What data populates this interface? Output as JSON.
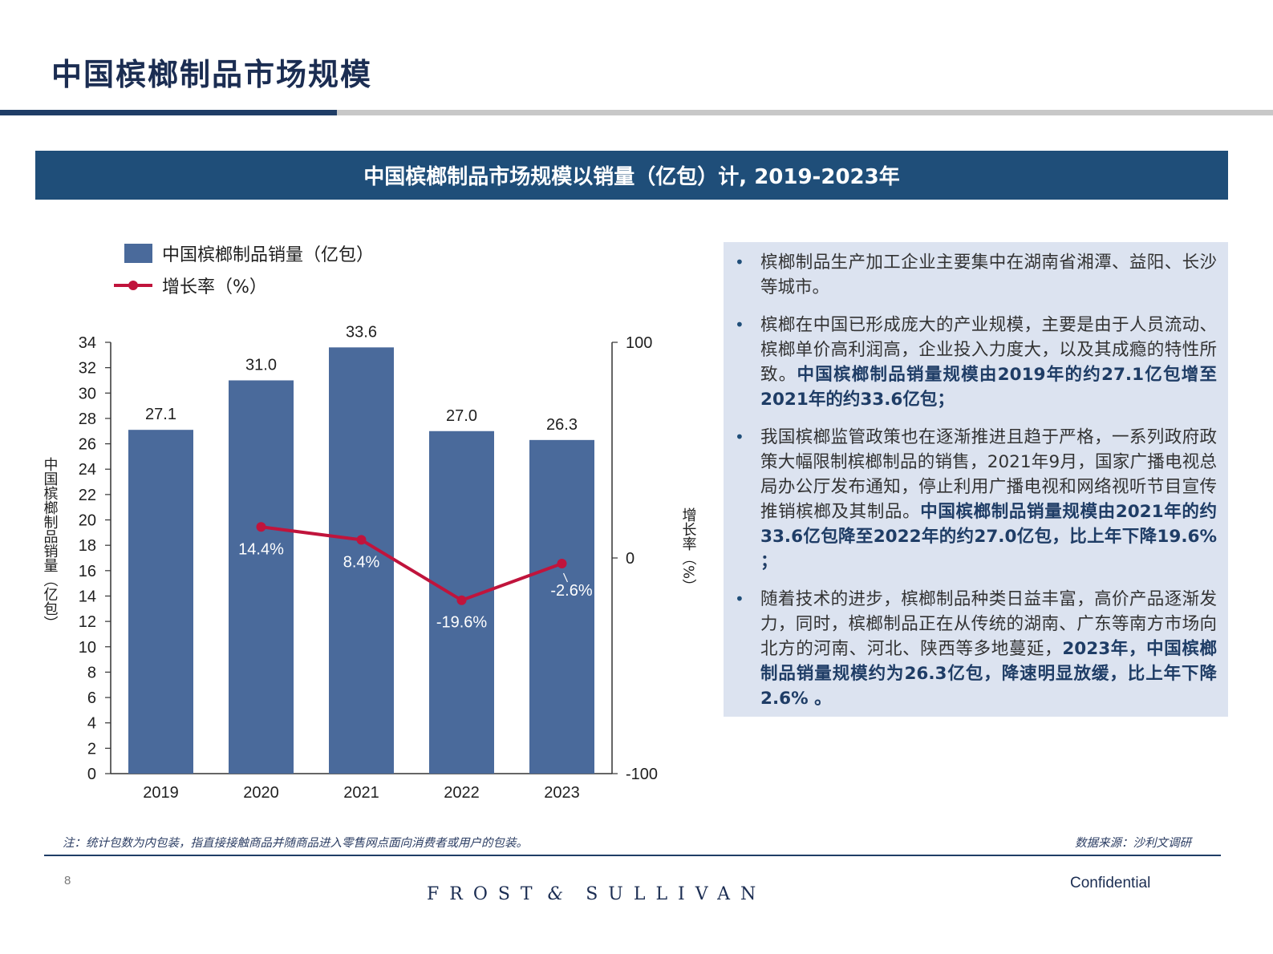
{
  "page": {
    "title": "中国槟榔制品市场规模",
    "banner": "中国槟榔制品市场规模以销量（亿包）计, 2019-2023年"
  },
  "chart_data": {
    "type": "bar",
    "categories": [
      "2019",
      "2020",
      "2021",
      "2022",
      "2023"
    ],
    "series": [
      {
        "name": "中国槟榔制品销量（亿包）",
        "type": "bar",
        "axis": "left",
        "values": [
          27.1,
          31.0,
          33.6,
          27.0,
          26.3
        ],
        "labels": [
          "27.1",
          "31.0",
          "33.6",
          "27.0",
          "26.3"
        ]
      },
      {
        "name": "增长率（%）",
        "type": "line",
        "axis": "right",
        "x": [
          "2020",
          "2021",
          "2022",
          "2023"
        ],
        "values": [
          14.4,
          8.4,
          -19.6,
          -2.6
        ],
        "labels": [
          "14.4%",
          "8.4%",
          "-19.6%",
          "-2.6%"
        ]
      }
    ],
    "ylabel": "中国槟榔制品销量（亿包）",
    "y2label": "增长率（%）",
    "ylim": [
      0,
      34
    ],
    "yticks": [
      "0",
      "2",
      "4",
      "6",
      "8",
      "10",
      "12",
      "14",
      "16",
      "18",
      "20",
      "22",
      "24",
      "26",
      "28",
      "30",
      "32",
      "34"
    ],
    "y2lim": [
      -100,
      100
    ],
    "y2ticks": [
      "-100",
      "0",
      "100"
    ],
    "legend": "top-left",
    "grid": false,
    "colors": {
      "bar": "#4a6a9b",
      "line": "#c0143c",
      "axis": "#333333"
    }
  },
  "bullets": [
    {
      "segments": [
        {
          "text": "槟榔制品生产加工企业主要集中在湖南省湘潭、益阳、长沙等城市。",
          "em": false
        }
      ]
    },
    {
      "segments": [
        {
          "text": "槟榔在中国已形成庞大的产业规模，主要是由于人员流动、槟榔单价高利润高，企业投入力度大，以及其成瘾的特性所致。",
          "em": false
        },
        {
          "text": "中国槟榔制品销量规模由2019年的约27.1亿包增至2021年的约33.6亿包；",
          "em": true
        }
      ]
    },
    {
      "segments": [
        {
          "text": "我国槟榔监管政策也在逐渐推进且趋于严格，一系列政府政策大幅限制槟榔制品的销售，2021年9月，国家广播电视总局办公厅发布通知，停止利用广播电视和网络视听节目宣传推销槟榔及其制品。",
          "em": false
        },
        {
          "text": "中国槟榔制品销量规模由2021年的约33.6亿包降至2022年的约27.0亿包，比上年下降19.6% ；",
          "em": true
        }
      ]
    },
    {
      "segments": [
        {
          "text": "随着技术的进步，槟榔制品种类日益丰富，高价产品逐渐发力，同时，槟榔制品正在从传统的湖南、广东等南方市场向北方的河南、河北、陕西等多地蔓延，",
          "em": false
        },
        {
          "text": "2023年，中国槟榔制品销量规模约为26.3亿包，降速明显放缓，比上年下降2.6% 。",
          "em": true
        }
      ]
    }
  ],
  "footer": {
    "note": "注：统计包数为内包装，指直接接触商品并随商品进入零售网点面向消费者或用户的包装。",
    "source": "数据来源：沙利文调研",
    "page_number": "8",
    "brand_left": "FROST",
    "brand_amp": "&",
    "brand_right": "SULLIVAN",
    "confidential": "Confidential"
  }
}
